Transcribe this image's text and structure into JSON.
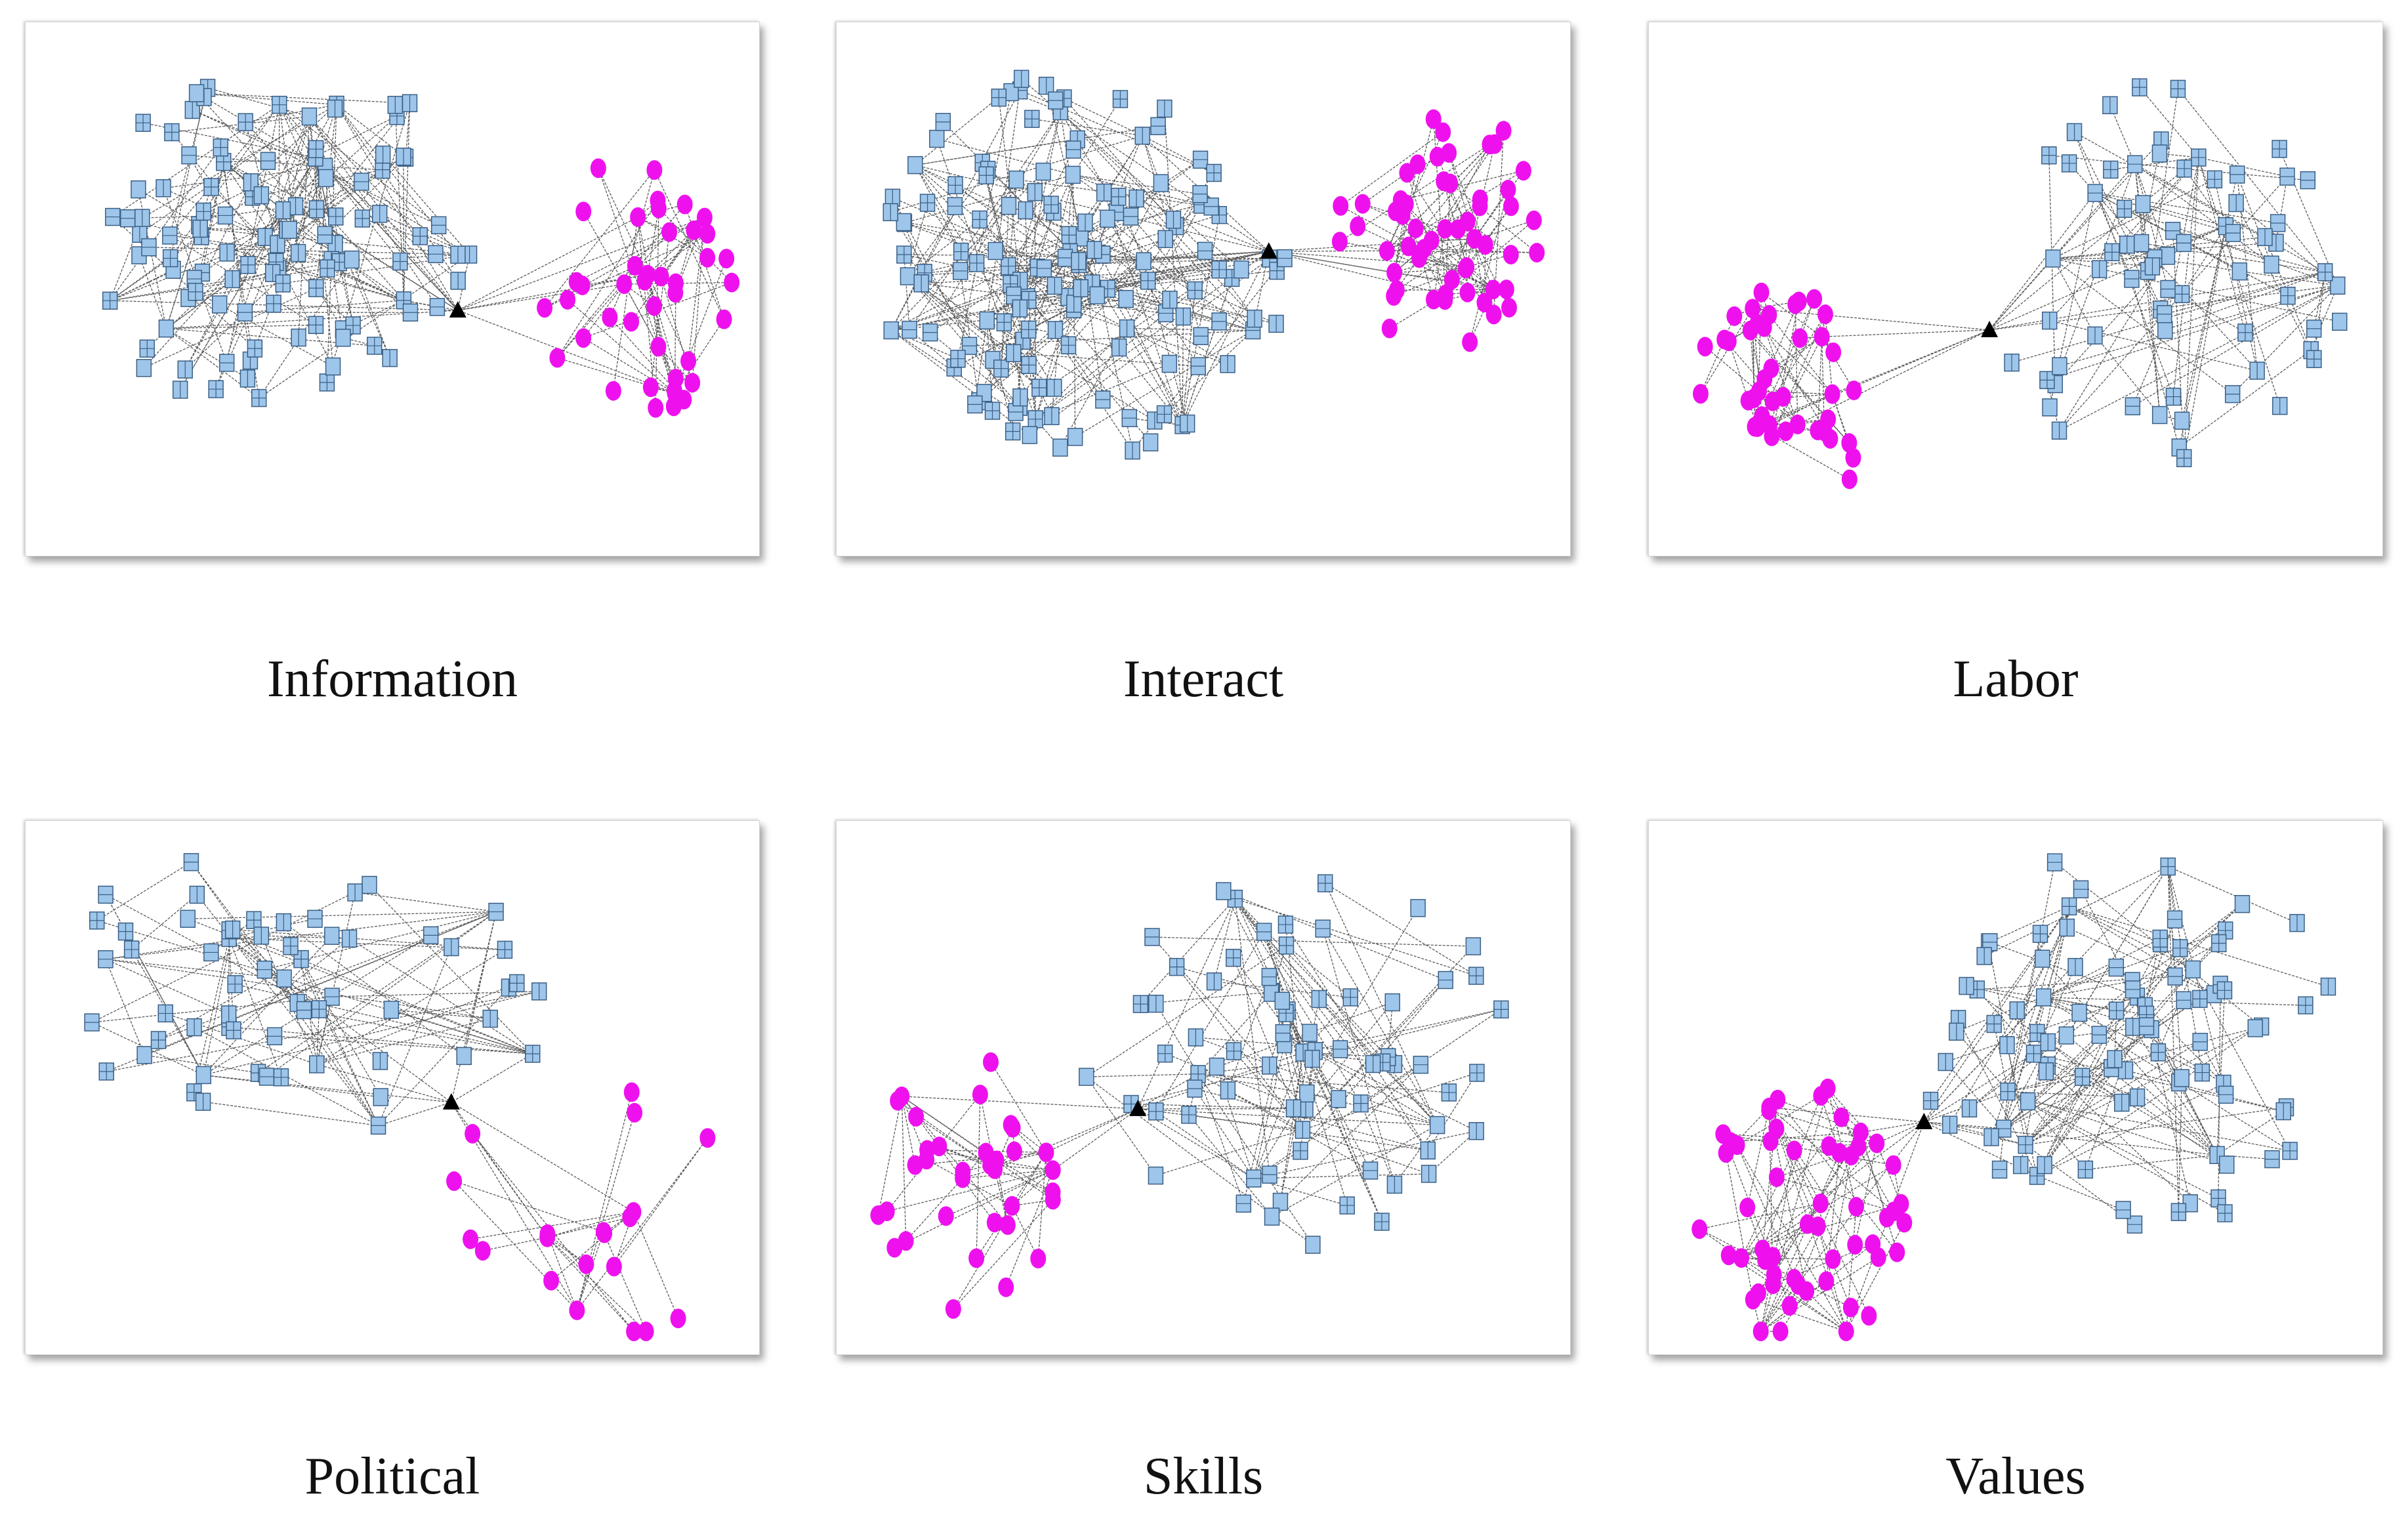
{
  "colors": {
    "square_fill": "#9ec5ea",
    "square_stroke": "#3b5f85",
    "circle_fill": "#ee11ee",
    "hub": "#000000",
    "edge": "#333333"
  },
  "panels": [
    {
      "label": "Information",
      "icons": [
        "square-node-icon",
        "circle-node-icon",
        "triangle-hub-icon"
      ]
    },
    {
      "label": "Interact",
      "icons": [
        "square-node-icon",
        "circle-node-icon",
        "triangle-hub-icon"
      ]
    },
    {
      "label": "Labor",
      "icons": [
        "square-node-icon",
        "circle-node-icon",
        "triangle-hub-icon"
      ]
    },
    {
      "label": "Political",
      "icons": [
        "square-node-icon",
        "circle-node-icon",
        "triangle-hub-icon"
      ]
    },
    {
      "label": "Skills",
      "icons": [
        "square-node-icon",
        "circle-node-icon",
        "triangle-hub-icon"
      ]
    },
    {
      "label": "Values",
      "icons": [
        "square-node-icon",
        "circle-node-icon",
        "triangle-hub-icon"
      ]
    }
  ]
}
